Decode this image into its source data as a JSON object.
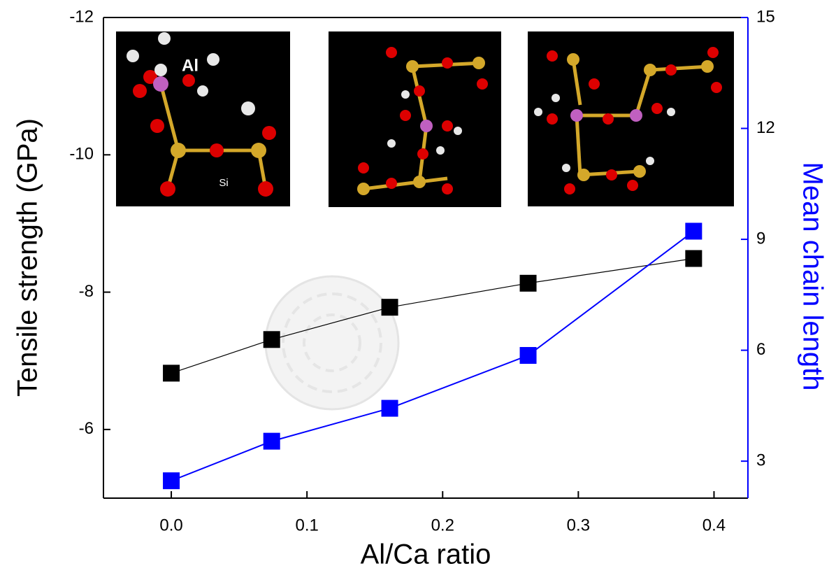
{
  "chart_data": {
    "type": "line",
    "xlabel": "Al/Ca ratio",
    "ylabel": "Tensile strength (GPa)",
    "y2label": "Mean chain length",
    "xlim": [
      -0.05,
      0.425
    ],
    "ylim": [
      -5,
      -12
    ],
    "y2lim": [
      2,
      15
    ],
    "xticks": [
      {
        "value": 0,
        "label": "0.0"
      },
      {
        "value": 0.1,
        "label": "0.1"
      },
      {
        "value": 0.2,
        "label": "0.2"
      },
      {
        "value": 0.3,
        "label": "0.3"
      },
      {
        "value": 0.4,
        "label": "0.4"
      }
    ],
    "yticks": [
      -12,
      -10,
      -8,
      -6
    ],
    "y2ticks": [
      15,
      12,
      9,
      6,
      3
    ],
    "x": [
      0,
      0.074,
      0.161,
      0.263,
      0.385
    ],
    "series": [
      {
        "color": "#000000",
        "values": [
          -6.82,
          -7.31,
          -7.78,
          -8.13,
          -8.49
        ]
      },
      {
        "color": "#0000ff",
        "axis": "y2",
        "values": [
          2.47,
          3.54,
          4.43,
          5.86,
          9.22
        ]
      }
    ],
    "annotations": [
      "Al",
      "Si"
    ]
  }
}
